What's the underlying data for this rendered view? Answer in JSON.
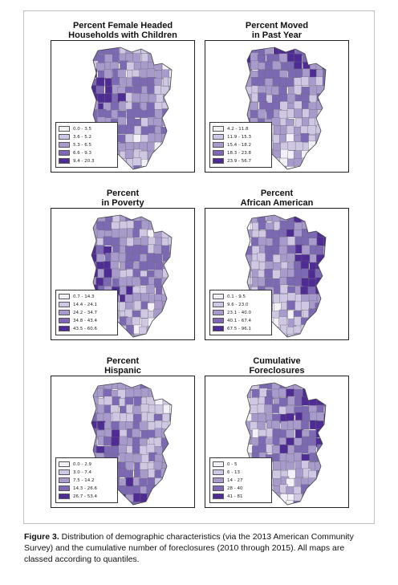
{
  "colors": [
    "#f3f1f7",
    "#d0c8e3",
    "#a89bcc",
    "#7d69b3",
    "#4f2b94"
  ],
  "panels": [
    {
      "id": "female-headed",
      "title_line1": "Percent Female Headed",
      "title_line2": "Households with Children",
      "legend": [
        "0.0 - 3.5",
        "3.6 - 5.2",
        "5.3 - 6.5",
        "6.6 - 9.3",
        "9.4 - 20.3"
      ]
    },
    {
      "id": "moved",
      "title_line1": "Percent Moved",
      "title_line2": "in Past Year",
      "legend": [
        "4.2 - 11.8",
        "11.9 - 15.3",
        "15.4 - 18.2",
        "18.3 - 23.8",
        "23.9 - 56.7"
      ]
    },
    {
      "id": "poverty",
      "title_line1": "Percent",
      "title_line2": "in Poverty",
      "legend": [
        "0.7 - 14.3",
        "14.4 - 24.1",
        "24.2 - 34.7",
        "34.8 - 43.4",
        "43.5 - 60.6"
      ]
    },
    {
      "id": "african-american",
      "title_line1": "Percent",
      "title_line2": "African American",
      "legend": [
        "0.1 - 9.5",
        "9.6 - 23.0",
        "23.1 - 40.0",
        "40.1 - 67.4",
        "67.5 - 96.1"
      ]
    },
    {
      "id": "hispanic",
      "title_line1": "Percent",
      "title_line2": "Hispanic",
      "legend": [
        "0.0 - 2.9",
        "3.0 - 7.4",
        "7.5 - 14.2",
        "14.3 - 26.6",
        "26.7 - 53.4"
      ]
    },
    {
      "id": "foreclosures",
      "title_line1": "Cumulative",
      "title_line2": "Foreclosures",
      "legend": [
        "0 - 5",
        "6 - 13",
        "14 - 27",
        "28 - 40",
        "41 - 81"
      ]
    }
  ],
  "caption": {
    "label": "Figure 3.",
    "text": " Distribution of demographic characteristics (via the 2013 American Community Survey) and the cumulative number of foreclosures (2010 through 2015). All maps are classed according to quantiles."
  }
}
